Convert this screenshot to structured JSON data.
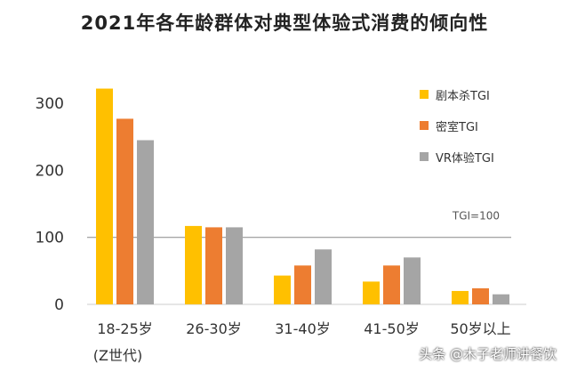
{
  "title": "2021年各年龄群体对典型体验式消费的倾向性",
  "chart_data": {
    "type": "bar",
    "categories": [
      "18-25岁",
      "26-30岁",
      "31-40岁",
      "41-50岁",
      "50岁以上"
    ],
    "category_sublabels": [
      "(Z世代)",
      "",
      "",
      "",
      ""
    ],
    "series": [
      {
        "name": "剧本杀TGI",
        "color": "#FFC000",
        "values": [
          322,
          117,
          43,
          34,
          20
        ]
      },
      {
        "name": "密室TGI",
        "color": "#ED7D31",
        "values": [
          277,
          115,
          58,
          58,
          24
        ]
      },
      {
        "name": "VR体验TGI",
        "color": "#A5A5A5",
        "values": [
          245,
          115,
          82,
          70,
          15
        ]
      }
    ],
    "yticks": [
      0,
      100,
      200,
      300
    ],
    "ylim": [
      0,
      340
    ],
    "reference_line": {
      "value": 100,
      "label": "TGI=100"
    },
    "legend_position": "right",
    "grid": false
  },
  "watermark": "头条 @木子老师讲餐饮"
}
